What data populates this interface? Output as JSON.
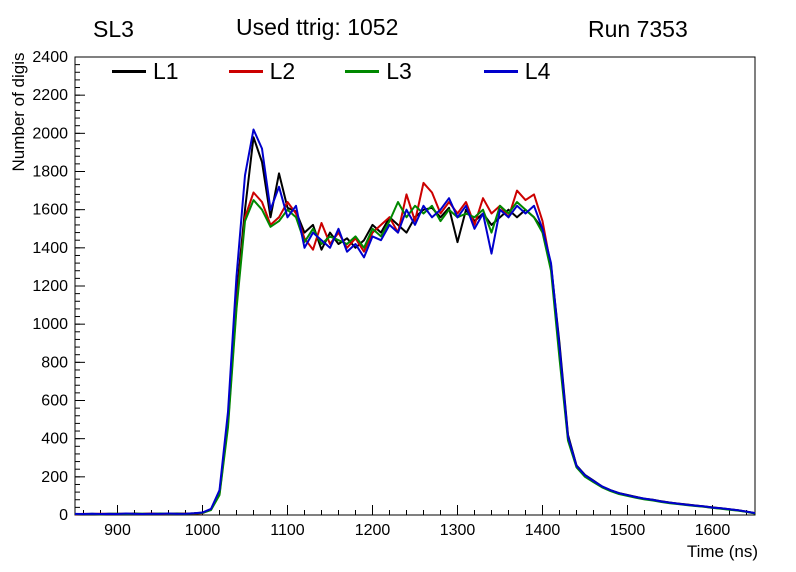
{
  "header": {
    "left": "SL3",
    "center": "Used ttrig: 1052",
    "right": "Run 7353"
  },
  "chart_data": {
    "type": "line",
    "title": "Used ttrig: 1052",
    "xlabel": "Time (ns)",
    "ylabel": "Number of digis",
    "xlim": [
      850,
      1650
    ],
    "ylim": [
      0,
      2400
    ],
    "xticks": [
      900,
      1000,
      1100,
      1200,
      1300,
      1400,
      1500,
      1600
    ],
    "yticks": [
      0,
      200,
      400,
      600,
      800,
      1000,
      1200,
      1400,
      1600,
      1800,
      2000,
      2200,
      2400
    ],
    "x_minor_step": 20,
    "y_minor_step": 40,
    "grid": false,
    "legend_position": "top-inside",
    "x": [
      850,
      860,
      870,
      880,
      890,
      900,
      910,
      920,
      930,
      940,
      950,
      960,
      970,
      980,
      990,
      1000,
      1010,
      1020,
      1030,
      1040,
      1050,
      1060,
      1070,
      1080,
      1090,
      1100,
      1110,
      1120,
      1130,
      1140,
      1150,
      1160,
      1170,
      1180,
      1190,
      1200,
      1210,
      1220,
      1230,
      1240,
      1250,
      1260,
      1270,
      1280,
      1290,
      1300,
      1310,
      1320,
      1330,
      1340,
      1350,
      1360,
      1370,
      1380,
      1390,
      1400,
      1410,
      1420,
      1430,
      1440,
      1450,
      1460,
      1470,
      1480,
      1490,
      1500,
      1510,
      1520,
      1530,
      1540,
      1550,
      1560,
      1570,
      1580,
      1590,
      1600,
      1610,
      1620,
      1630,
      1640,
      1650
    ],
    "series": [
      {
        "name": "L1",
        "color": "#000000",
        "values": [
          5,
          4,
          6,
          5,
          7,
          6,
          5,
          8,
          6,
          7,
          5,
          6,
          8,
          7,
          9,
          12,
          30,
          120,
          500,
          1150,
          1600,
          1980,
          1850,
          1560,
          1790,
          1610,
          1590,
          1480,
          1520,
          1390,
          1480,
          1420,
          1450,
          1400,
          1440,
          1520,
          1480,
          1560,
          1520,
          1480,
          1560,
          1600,
          1610,
          1560,
          1610,
          1430,
          1600,
          1540,
          1580,
          1520,
          1560,
          1600,
          1560,
          1600,
          1560,
          1500,
          1310,
          900,
          420,
          260,
          210,
          180,
          150,
          130,
          115,
          105,
          95,
          85,
          80,
          72,
          65,
          60,
          55,
          50,
          45,
          40,
          35,
          30,
          25,
          18,
          10
        ]
      },
      {
        "name": "L2",
        "color": "#cc0000",
        "values": [
          4,
          6,
          5,
          7,
          5,
          6,
          7,
          5,
          6,
          8,
          6,
          7,
          5,
          8,
          7,
          10,
          28,
          110,
          480,
          1100,
          1560,
          1690,
          1640,
          1520,
          1560,
          1640,
          1580,
          1450,
          1390,
          1530,
          1420,
          1480,
          1400,
          1450,
          1380,
          1480,
          1520,
          1560,
          1480,
          1680,
          1540,
          1740,
          1690,
          1580,
          1640,
          1580,
          1640,
          1520,
          1660,
          1580,
          1620,
          1560,
          1700,
          1650,
          1680,
          1540,
          1300,
          850,
          400,
          255,
          205,
          175,
          148,
          128,
          112,
          102,
          92,
          84,
          78,
          70,
          64,
          58,
          53,
          48,
          44,
          38,
          34,
          29,
          24,
          17,
          9
        ]
      },
      {
        "name": "L3",
        "color": "#008800",
        "values": [
          5,
          5,
          6,
          4,
          6,
          7,
          5,
          6,
          7,
          5,
          8,
          6,
          7,
          6,
          8,
          11,
          26,
          105,
          460,
          1080,
          1540,
          1650,
          1600,
          1510,
          1540,
          1600,
          1560,
          1430,
          1500,
          1420,
          1460,
          1440,
          1420,
          1460,
          1400,
          1500,
          1460,
          1540,
          1640,
          1560,
          1620,
          1580,
          1620,
          1540,
          1600,
          1560,
          1580,
          1560,
          1600,
          1480,
          1620,
          1580,
          1640,
          1600,
          1560,
          1480,
          1280,
          820,
          390,
          250,
          200,
          172,
          145,
          125,
          110,
          100,
          90,
          82,
          76,
          68,
          62,
          57,
          52,
          47,
          43,
          37,
          33,
          28,
          23,
          16,
          8
        ]
      },
      {
        "name": "L4",
        "color": "#0000cc",
        "values": [
          6,
          5,
          7,
          5,
          6,
          5,
          8,
          6,
          5,
          7,
          6,
          8,
          6,
          7,
          9,
          13,
          32,
          130,
          540,
          1250,
          1780,
          2020,
          1920,
          1600,
          1720,
          1560,
          1620,
          1400,
          1480,
          1440,
          1400,
          1500,
          1380,
          1420,
          1350,
          1460,
          1440,
          1520,
          1480,
          1600,
          1520,
          1620,
          1560,
          1600,
          1660,
          1560,
          1620,
          1500,
          1580,
          1370,
          1600,
          1560,
          1620,
          1580,
          1620,
          1500,
          1320,
          880,
          410,
          258,
          208,
          178,
          150,
          130,
          114,
          104,
          94,
          86,
          79,
          71,
          65,
          59,
          54,
          49,
          45,
          39,
          35,
          30,
          25,
          18,
          10
        ]
      }
    ]
  }
}
